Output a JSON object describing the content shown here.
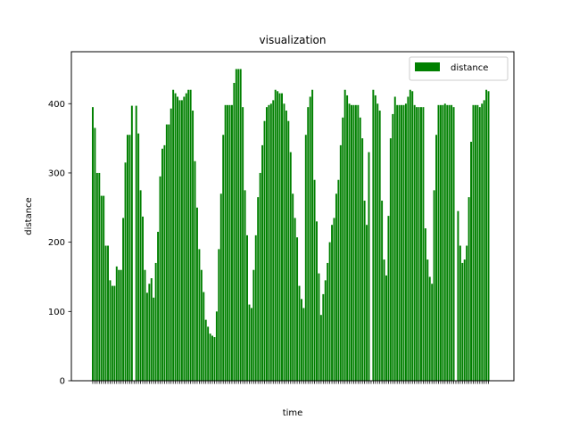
{
  "chart_data": {
    "type": "bar",
    "title": "visualization",
    "xlabel": "time",
    "ylabel": "distance",
    "ylim": [
      0,
      475
    ],
    "yticks": [
      0,
      100,
      200,
      300,
      400
    ],
    "legend_position": "top-right",
    "grid": false,
    "series": [
      {
        "name": "distance",
        "color": "#008000",
        "values": [
          395,
          365,
          300,
          300,
          267,
          267,
          195,
          195,
          145,
          137,
          137,
          165,
          160,
          160,
          235,
          315,
          355,
          355,
          397,
          0,
          397,
          357,
          275,
          237,
          160,
          127,
          140,
          148,
          120,
          170,
          215,
          295,
          335,
          340,
          370,
          370,
          393,
          420,
          415,
          410,
          405,
          405,
          410,
          415,
          420,
          420,
          390,
          317,
          250,
          190,
          160,
          128,
          88,
          78,
          68,
          65,
          63,
          100,
          190,
          270,
          355,
          398,
          398,
          398,
          398,
          430,
          450,
          450,
          450,
          395,
          275,
          210,
          110,
          105,
          160,
          210,
          265,
          300,
          340,
          375,
          395,
          398,
          400,
          405,
          420,
          418,
          415,
          415,
          400,
          390,
          375,
          330,
          270,
          235,
          207,
          137,
          118,
          105,
          355,
          395,
          410,
          420,
          290,
          230,
          155,
          95,
          125,
          145,
          170,
          200,
          225,
          235,
          270,
          290,
          340,
          380,
          420,
          412,
          400,
          398,
          398,
          398,
          398,
          380,
          350,
          260,
          225,
          330,
          0,
          420,
          412,
          400,
          390,
          260,
          175,
          152,
          238,
          350,
          385,
          410,
          398,
          398,
          398,
          398,
          400,
          410,
          420,
          418,
          398,
          395,
          395,
          395,
          395,
          220,
          175,
          150,
          140,
          275,
          355,
          398,
          398,
          398,
          400,
          398,
          398,
          398,
          395,
          0,
          245,
          195,
          170,
          175,
          195,
          265,
          345,
          398,
          398,
          398,
          395,
          400,
          405,
          420,
          418
        ]
      }
    ]
  }
}
